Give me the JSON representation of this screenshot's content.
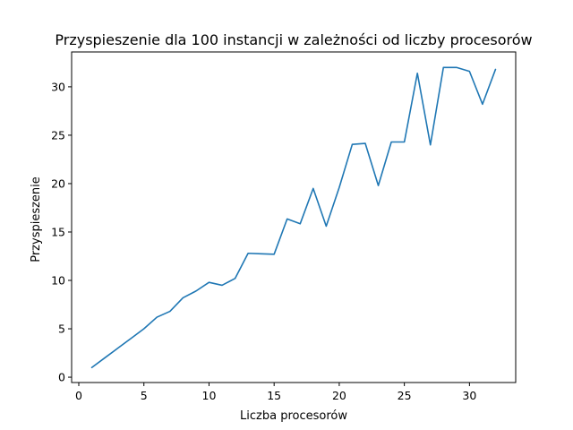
{
  "chart_data": {
    "type": "line",
    "title": "Przyspieszenie dla 100 instancji w zależności od liczby procesorów",
    "xlabel": "Liczba procesorów",
    "ylabel": "Przyspieszenie",
    "xlim": [
      -0.55,
      33.55
    ],
    "ylim": [
      -0.55,
      33.6
    ],
    "xticks": [
      0,
      5,
      10,
      15,
      20,
      25,
      30
    ],
    "yticks": [
      0,
      5,
      10,
      15,
      20,
      25,
      30
    ],
    "grid": false,
    "series": [
      {
        "color": "#1f77b4",
        "x": [
          1,
          2,
          3,
          4,
          5,
          6,
          7,
          8,
          9,
          10,
          11,
          12,
          13,
          14,
          15,
          16,
          17,
          18,
          19,
          20,
          21,
          22,
          23,
          24,
          25,
          26,
          27,
          28,
          29,
          30,
          31,
          32
        ],
        "y": [
          1.0,
          2.0,
          3.0,
          4.0,
          5.0,
          6.2,
          6.8,
          8.2,
          8.9,
          9.8,
          9.5,
          10.2,
          12.8,
          12.75,
          12.7,
          16.35,
          15.85,
          19.5,
          15.6,
          19.6,
          24.05,
          24.15,
          19.8,
          24.3,
          24.3,
          31.4,
          24.0,
          32.0,
          32.0,
          31.6,
          28.2,
          31.8
        ]
      }
    ]
  }
}
